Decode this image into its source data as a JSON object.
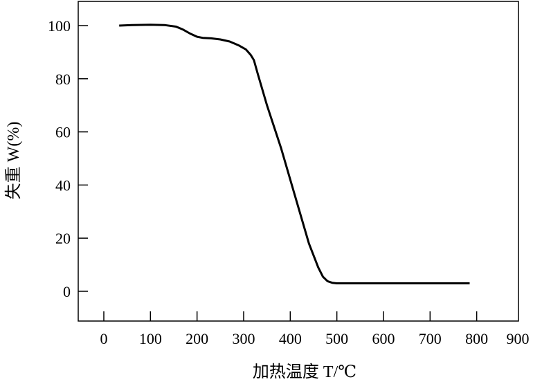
{
  "chart_data": {
    "type": "line",
    "title": "",
    "xlabel": "加热温度 T/℃",
    "ylabel": "失重 W(%)",
    "xlim": [
      -55,
      890
    ],
    "ylim": [
      -11,
      110
    ],
    "xticks": [
      "0",
      "100",
      "200",
      "300",
      "400",
      "500",
      "600",
      "700",
      "800",
      "900"
    ],
    "yticks": [
      "0",
      "20",
      "40",
      "60",
      "80",
      "100"
    ],
    "grid": false,
    "line_color": "#000000",
    "series": [
      {
        "x": [
          33,
          60,
          100,
          130,
          155,
          170,
          185,
          200,
          212,
          230,
          250,
          270,
          290,
          305,
          315,
          322,
          330,
          350,
          380,
          410,
          440,
          460,
          470,
          480,
          490,
          500,
          550,
          600,
          650,
          700,
          750,
          785
        ],
        "y": [
          100,
          100.2,
          100.3,
          100.2,
          99.6,
          98.5,
          97,
          95.8,
          95.4,
          95.2,
          94.8,
          94,
          92.5,
          91,
          89,
          87,
          82,
          70,
          54,
          36,
          18,
          9,
          5.5,
          3.8,
          3.2,
          3,
          3,
          3,
          3,
          3,
          3,
          3
        ]
      }
    ]
  }
}
